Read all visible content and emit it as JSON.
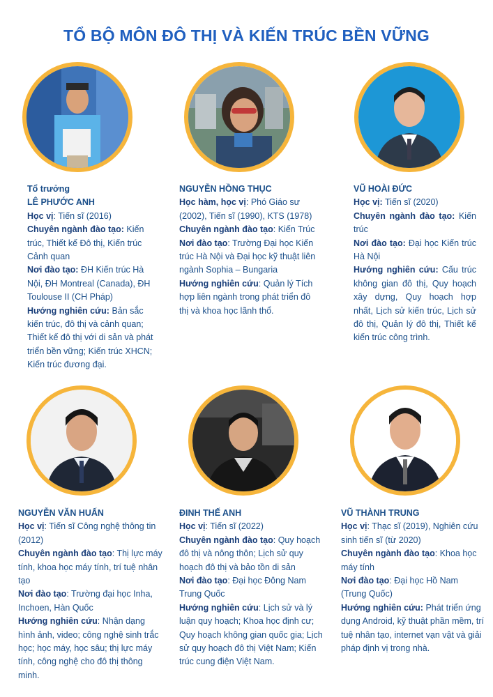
{
  "title": "TỔ BỘ MÔN ĐÔ THỊ VÀ KIẾN TRÚC BỀN VỮNG",
  "members": [
    {
      "role": "Tổ trưởng",
      "name": "LÊ PHƯỚC ANH",
      "degree_label": "Học vị",
      "degree": "Tiến sĩ (2016)",
      "major_label": "Chuyên ngành đào tạo:",
      "major": "Kiến trúc, Thiết kế Đô thị, Kiến trúc Cảnh quan",
      "school_label": "Nơi đào tạo:",
      "school": "ĐH Kiến trúc Hà Nội, ĐH Montreal (Canada), ĐH Toulouse II (CH Pháp)",
      "research_label": "Hướng nghiên cứu:",
      "research": "Bản sắc kiến trúc, đô thị và cảnh quan; Thiết kế đô thị với di sản và phát triển bền vững; Kiến trúc XHCN; Kiến trúc đương đại."
    },
    {
      "name": "NGUYỄN HỒNG THỤC",
      "degree_label": "Học hàm, học vị",
      "degree": "Phó Giáo sư (2002), Tiến sĩ (1990), KTS (1978)",
      "major_label": "Chuyên ngành đào tạo",
      "major": "Kiến Trúc",
      "school_label": "Nơi đào tạo",
      "school": "Trường Đại học Kiến trúc Hà Nội và Đại học kỹ thuật liên ngành Sophia – Bungaria",
      "research_label": "Hướng nghiên cứu",
      "research": "Quản lý Tích hợp liên ngành trong phát triển đô thị và khoa học lãnh thổ."
    },
    {
      "name": "VŨ HOÀI ĐỨC",
      "degree_label": "Học vị:",
      "degree": "Tiến sĩ (2020)",
      "major_label": "Chuyên ngành đào tạo:",
      "major": "Kiến trúc",
      "school_label": "Nơi đào tạo:",
      "school": "Đại học Kiến trúc Hà Nội",
      "research_label": "Hướng nghiên cứu:",
      "research": "Cấu trúc không gian đô thị, Quy hoạch xây dựng, Quy hoạch hợp nhất, Lịch sử kiến trúc, Lịch sử đô thị, Quản lý đô thị, Thiết kế kiến trúc công trình."
    },
    {
      "name": "NGUYỄN VĂN HUẤN",
      "degree_label": "Học vị",
      "degree": "Tiến sĩ Công nghệ thông tin (2012)",
      "major_label": "Chuyên ngành đào tạo",
      "major": "Thị lực máy tính, khoa học máy tính, trí tuệ nhân tạo",
      "school_label": "Nơi đào tạo",
      "school": "Trường đại học Inha, Inchoen, Hàn Quốc",
      "research_label": "Hướng nghiên cứu",
      "research": "Nhận dạng hình ảnh, video; công nghệ sinh trắc học; học máy, học sâu; thị lực máy tính, công nghệ cho đô thị thông minh."
    },
    {
      "name": "ĐINH THẾ ANH",
      "degree_label": "Học vị",
      "degree": "Tiến sĩ (2022)",
      "major_label": "Chuyên ngành đào tạo",
      "major": "Quy hoạch đô thị và nông thôn; Lịch sử quy hoạch đô thị và bảo tồn di sản",
      "school_label": "Nơi đào tạo",
      "school": "Đại học Đông Nam Trung Quốc",
      "research_label": "Hướng nghiên cứu",
      "research": "Lịch sử và lý luận quy hoạch; Khoa học định cư; Quy hoạch không gian quốc gia; Lịch sử quy hoạch đô thị Việt Nam; Kiến trúc cung điện Việt Nam."
    },
    {
      "name": "VŨ THÀNH TRUNG",
      "degree_label": "Học vị",
      "degree": "Thạc sĩ (2019), Nghiên cứu sinh tiến sĩ (từ 2020)",
      "major_label": "Chuyên ngành đào tạo",
      "major": "Khoa học máy tính",
      "school_label": "Nơi đào tạo",
      "school": "Đại học Hồ Nam (Trung Quốc)",
      "research_label": "Hướng nghiên cứu:",
      "research": "Phát triển ứng dụng Android, kỹ thuật phần mềm, trí tuệ nhân tạo, internet vạn vật và giải pháp định vị trong nhà."
    }
  ]
}
